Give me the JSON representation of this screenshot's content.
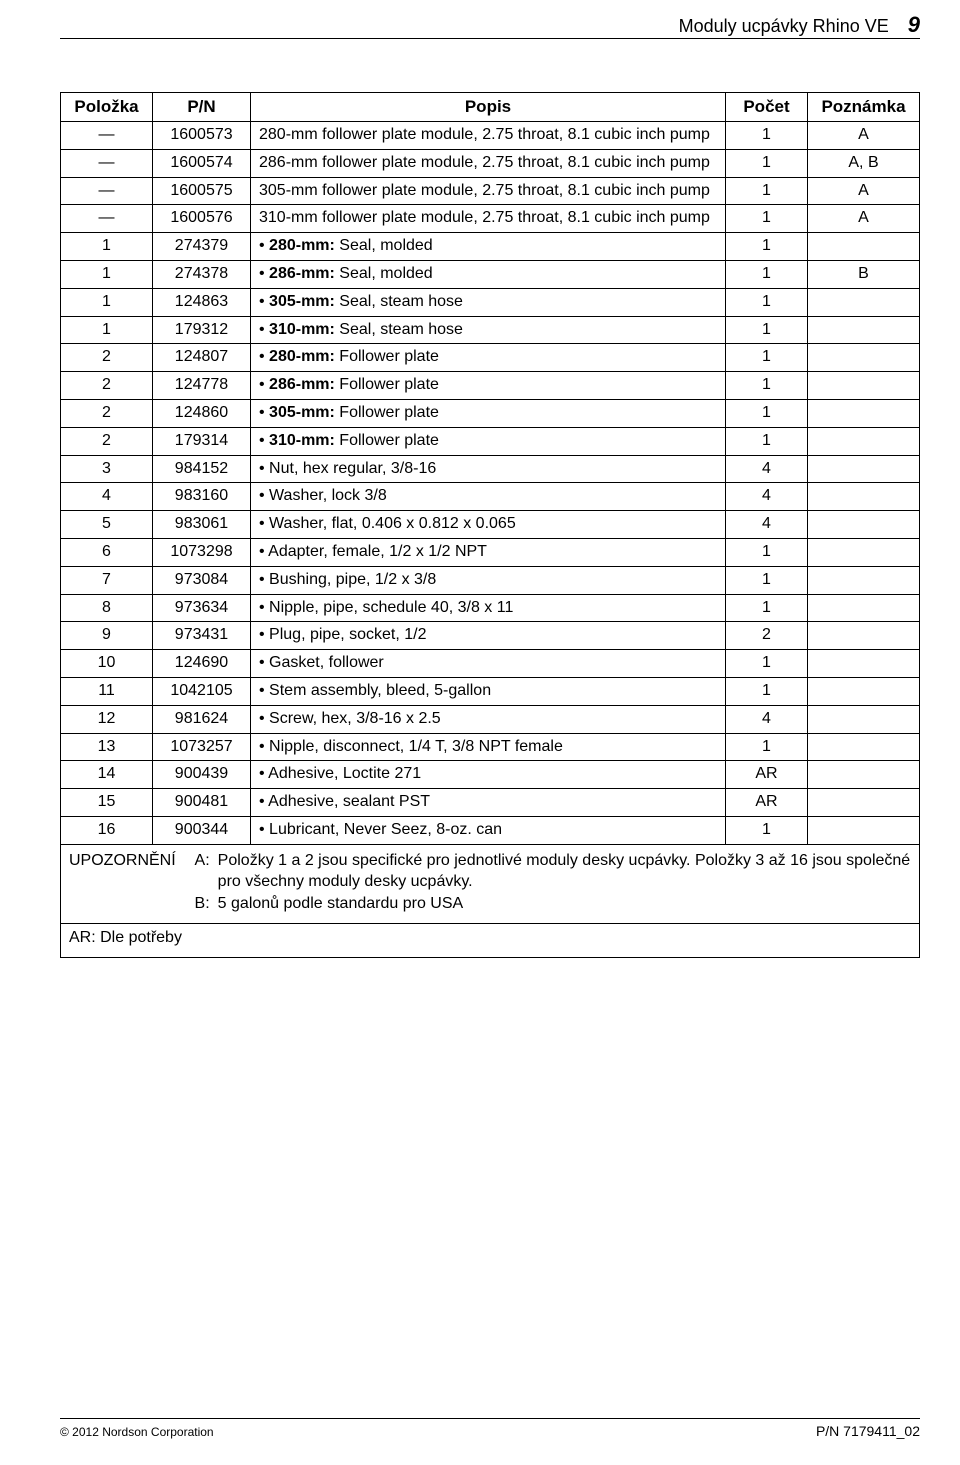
{
  "header": {
    "title": "Moduly ucpávky Rhino VE",
    "page_num": "9"
  },
  "table": {
    "columns": [
      "Položka",
      "P/N",
      "Popis",
      "Počet",
      "Poznámka"
    ],
    "rows": [
      {
        "item": "—",
        "pn": "1600573",
        "desc": "280-mm follower plate module, 2.75 throat, 8.1 cubic inch pump",
        "qty": "1",
        "note": "A",
        "bullet": false
      },
      {
        "item": "—",
        "pn": "1600574",
        "desc": "286-mm follower plate module, 2.75 throat, 8.1 cubic inch pump",
        "qty": "1",
        "note": "A, B",
        "bullet": false
      },
      {
        "item": "—",
        "pn": "1600575",
        "desc": "305-mm follower plate module, 2.75 throat, 8.1 cubic inch pump",
        "qty": "1",
        "note": "A",
        "bullet": false
      },
      {
        "item": "—",
        "pn": "1600576",
        "desc": "310-mm follower plate module, 2.75 throat, 8.1 cubic inch pump",
        "qty": "1",
        "note": "A",
        "bullet": false
      },
      {
        "item": "1",
        "pn": "274379",
        "desc_bold": "280-mm:",
        "desc_rest": " Seal, molded",
        "qty": "1",
        "note": "",
        "bullet": true
      },
      {
        "item": "1",
        "pn": "274378",
        "desc_bold": "286-mm:",
        "desc_rest": " Seal, molded",
        "qty": "1",
        "note": "B",
        "bullet": true
      },
      {
        "item": "1",
        "pn": "124863",
        "desc_bold": "305-mm:",
        "desc_rest": " Seal, steam hose",
        "qty": "1",
        "note": "",
        "bullet": true
      },
      {
        "item": "1",
        "pn": "179312",
        "desc_bold": "310-mm:",
        "desc_rest": " Seal, steam hose",
        "qty": "1",
        "note": "",
        "bullet": true
      },
      {
        "item": "2",
        "pn": "124807",
        "desc_bold": "280-mm:",
        "desc_rest": " Follower plate",
        "qty": "1",
        "note": "",
        "bullet": true
      },
      {
        "item": "2",
        "pn": "124778",
        "desc_bold": "286-mm:",
        "desc_rest": " Follower plate",
        "qty": "1",
        "note": "",
        "bullet": true
      },
      {
        "item": "2",
        "pn": "124860",
        "desc_bold": "305-mm:",
        "desc_rest": " Follower plate",
        "qty": "1",
        "note": "",
        "bullet": true
      },
      {
        "item": "2",
        "pn": "179314",
        "desc_bold": "310-mm:",
        "desc_rest": " Follower plate",
        "qty": "1",
        "note": "",
        "bullet": true
      },
      {
        "item": "3",
        "pn": "984152",
        "desc": "Nut, hex regular, 3/8-16",
        "qty": "4",
        "note": "",
        "bullet": true
      },
      {
        "item": "4",
        "pn": "983160",
        "desc": "Washer, lock 3/8",
        "qty": "4",
        "note": "",
        "bullet": true
      },
      {
        "item": "5",
        "pn": "983061",
        "desc": "Washer, flat, 0.406 x 0.812 x 0.065",
        "qty": "4",
        "note": "",
        "bullet": true
      },
      {
        "item": "6",
        "pn": "1073298",
        "desc": "Adapter, female, 1/2 x 1/2 NPT",
        "qty": "1",
        "note": "",
        "bullet": true
      },
      {
        "item": "7",
        "pn": "973084",
        "desc": "Bushing, pipe, 1/2 x 3/8",
        "qty": "1",
        "note": "",
        "bullet": true
      },
      {
        "item": "8",
        "pn": "973634",
        "desc": "Nipple, pipe, schedule 40, 3/8 x 11",
        "qty": "1",
        "note": "",
        "bullet": true
      },
      {
        "item": "9",
        "pn": "973431",
        "desc": "Plug, pipe, socket, 1/2",
        "qty": "2",
        "note": "",
        "bullet": true
      },
      {
        "item": "10",
        "pn": "124690",
        "desc": "Gasket, follower",
        "qty": "1",
        "note": "",
        "bullet": true
      },
      {
        "item": "11",
        "pn": "1042105",
        "desc": "Stem assembly, bleed, 5-gallon",
        "qty": "1",
        "note": "",
        "bullet": true
      },
      {
        "item": "12",
        "pn": "981624",
        "desc": "Screw, hex, 3/8-16 x 2.5",
        "qty": "4",
        "note": "",
        "bullet": true
      },
      {
        "item": "13",
        "pn": "1073257",
        "desc": "Nipple, disconnect, 1/4 T, 3/8 NPT female",
        "qty": "1",
        "note": "",
        "bullet": true
      },
      {
        "item": "14",
        "pn": "900439",
        "desc": "Adhesive, Loctite 271",
        "qty": "AR",
        "note": "",
        "bullet": true
      },
      {
        "item": "15",
        "pn": "900481",
        "desc": "Adhesive, sealant PST",
        "qty": "AR",
        "note": "",
        "bullet": true
      },
      {
        "item": "16",
        "pn": "900344",
        "desc": "Lubricant, Never Seez, 8-oz. can",
        "qty": "1",
        "note": "",
        "bullet": true
      }
    ]
  },
  "notes": {
    "label": "UPOZORNĚNÍ",
    "a_key": "A:",
    "a_text": "Položky 1 a 2 jsou specifické pro jednotlivé moduly desky ucpávky. Položky 3 až 16 jsou společné pro všechny moduly desky ucpávky.",
    "b_key": "B:",
    "b_text": "5 galonů podle standardu pro USA",
    "ar_key": "AR:",
    "ar_text": "Dle potřeby"
  },
  "footer": {
    "left": "© 2012 Nordson Corporation",
    "right": "P/N 7179411_02"
  }
}
